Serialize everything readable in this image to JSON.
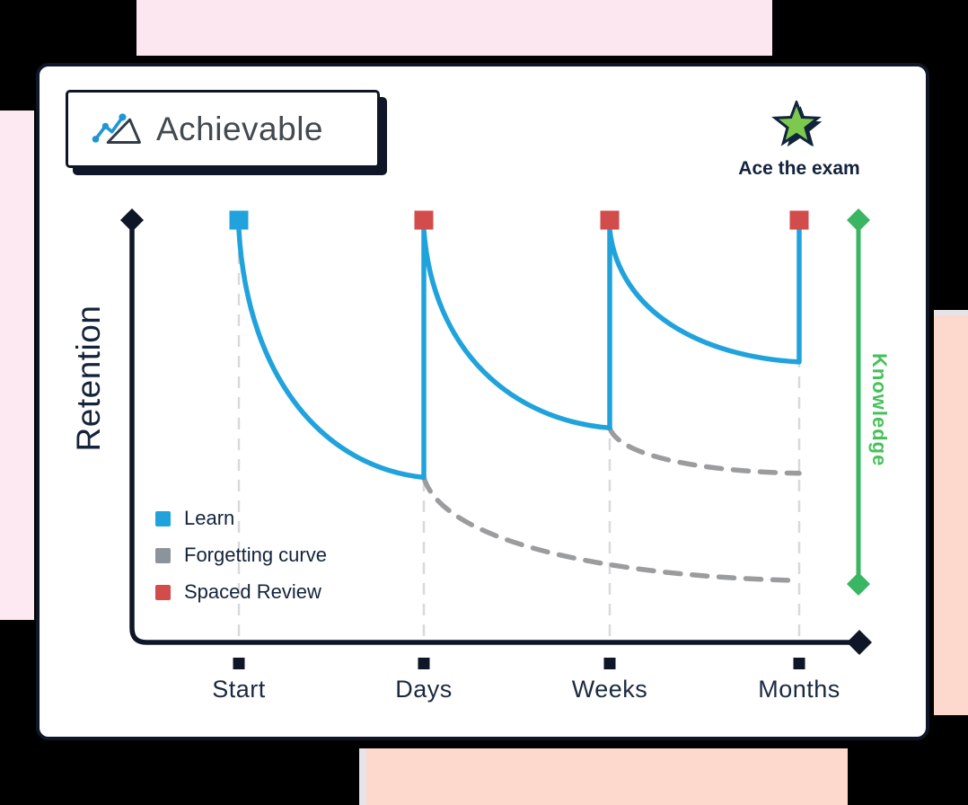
{
  "page": {
    "background": "#000000",
    "decor_colors": {
      "pink_top": "#fce7f0",
      "pink_left": "#fce9f1",
      "peach_right": "#fcd9cc",
      "peach_bottom": "#fcd9cc"
    },
    "card_bg": "#ffffff",
    "card_border": "#0e1627"
  },
  "logo": {
    "text": "Achievable",
    "text_color": "#424950",
    "icon_blue": "#1f97d4",
    "icon_dark": "#333b47"
  },
  "tagline": {
    "text": "Ace the exam",
    "color": "#12233d",
    "star_fill": "#7cc94e",
    "star_outline": "#12233d"
  },
  "chart_data": {
    "type": "line",
    "title": "",
    "x_categories": [
      "Start",
      "Days",
      "Weeks",
      "Months"
    ],
    "ylabel": "Retention",
    "right_axis_label": "Knowledge",
    "y_axis": {
      "min": 0,
      "max": 100,
      "tick_labels_visible": false
    },
    "grid": "vertical-dashed",
    "grid_color": "#d9d9d9",
    "axis_color": "#0e1627",
    "legend_position": "inside-lower-left",
    "legend": [
      {
        "label": "Learn",
        "color": "#20a3dc"
      },
      {
        "label": "Forgetting curve",
        "color": "#8d939a"
      },
      {
        "label": "Spaced Review",
        "color": "#d24c4b"
      }
    ],
    "markers": [
      {
        "x": "Start",
        "kind": "Learn",
        "color": "#20a3dc"
      },
      {
        "x": "Days",
        "kind": "Spaced Review",
        "color": "#d24c4b"
      },
      {
        "x": "Weeks",
        "kind": "Spaced Review",
        "color": "#d24c4b"
      },
      {
        "x": "Months",
        "kind": "Spaced Review",
        "color": "#d24c4b"
      }
    ],
    "series": [
      {
        "name": "Learn + Spaced Review",
        "color": "#20a3dc",
        "style": "solid",
        "points": [
          [
            "Start",
            100
          ],
          [
            "Days",
            40
          ],
          [
            "Days",
            100
          ],
          [
            "Weeks",
            52
          ],
          [
            "Weeks",
            100
          ],
          [
            "Months",
            68
          ],
          [
            "Months",
            100
          ]
        ]
      },
      {
        "name": "Forgetting curve",
        "color": "#9a9c9e",
        "style": "dashed",
        "points": [
          [
            "Days",
            40
          ],
          [
            "Months",
            15
          ]
        ]
      },
      {
        "name": "Forgetting curve",
        "color": "#9a9c9e",
        "style": "dashed",
        "points": [
          [
            "Weeks",
            52
          ],
          [
            "Months",
            41
          ]
        ]
      }
    ],
    "right_axis": {
      "line_color": "#39b563",
      "text_color": "#46c15a"
    }
  }
}
